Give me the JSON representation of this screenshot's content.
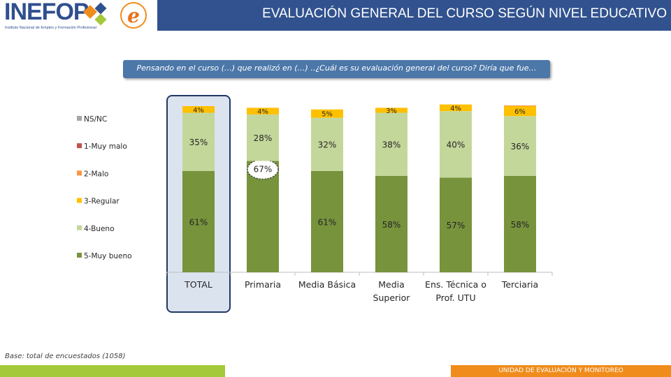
{
  "header": {
    "logo_text": "INEFOP",
    "logo_subtitle": "Instituto Nacional de Empleo y Formación Profesional",
    "title": "EVALUACIÓN GENERAL DEL CURSO SEGÚN NIVEL EDUCATIVO"
  },
  "question": "Pensando en el curso (…) que realizó en (…) ..¿Cuál es su evaluación general del curso? Diría que fue…",
  "base_note": "Base: total de encuestados (1058)",
  "footer": {
    "text": "UNIDAD DE EVALUACIÓN Y MONITOREO"
  },
  "colors": {
    "header_blue": "#31528e",
    "question_blue": "#4c77a9",
    "muy_bueno": "#77933c",
    "bueno": "#c4d79b",
    "regular": "#ffc000",
    "malo": "#f79646",
    "muy_malo": "#c0504d",
    "nsnc": "#a6a6a6"
  },
  "chart_data": {
    "type": "bar",
    "stacked": true,
    "normalized": true,
    "categories": [
      "TOTAL",
      "Primaria",
      "Media Básica",
      "Media Superior",
      "Ens. Técnica o Prof. UTU",
      "Terciaria"
    ],
    "category_lines": [
      [
        "TOTAL"
      ],
      [
        "Primaria"
      ],
      [
        "Media Básica"
      ],
      [
        "Media",
        "Superior"
      ],
      [
        "Ens. Técnica o",
        "Prof. UTU"
      ],
      [
        "Terciaria"
      ]
    ],
    "series": [
      {
        "name": "5-Muy bueno",
        "values": [
          61,
          67,
          61,
          58,
          57,
          58
        ],
        "labels": [
          "61%",
          "67%",
          "61%",
          "58%",
          "57%",
          "58%"
        ]
      },
      {
        "name": "4-Bueno",
        "values": [
          35,
          28,
          32,
          38,
          40,
          36
        ],
        "labels": [
          "35%",
          "28%",
          "32%",
          "38%",
          "40%",
          "36%"
        ]
      },
      {
        "name": "3-Regular",
        "values": [
          4,
          4,
          5,
          3,
          4,
          6
        ],
        "labels": [
          "4%",
          "4%",
          "5%",
          "3%",
          "4%",
          "6%"
        ]
      },
      {
        "name": "2-Malo",
        "values": [
          0,
          0,
          0,
          0,
          0,
          0.4
        ],
        "labels": []
      },
      {
        "name": "1-Muy malo",
        "values": [
          0,
          0,
          0,
          0,
          0,
          0
        ],
        "labels": []
      },
      {
        "name": "NS/NC",
        "values": [
          0,
          0,
          0,
          0,
          0,
          0
        ],
        "labels": []
      }
    ],
    "legend": [
      "NS/NC",
      "1-Muy malo",
      "2-Malo",
      "3-Regular",
      "4-Bueno",
      "5-Muy bueno"
    ],
    "legend_position": "left",
    "highlight_category": "TOTAL",
    "highlight_label": "67%"
  }
}
